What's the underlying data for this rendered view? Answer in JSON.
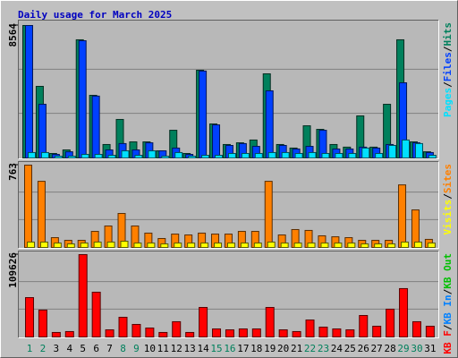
{
  "title": "Daily usage for March 2025",
  "chart_data": [
    {
      "type": "bar",
      "ylim": [
        0,
        8564
      ],
      "yticks": [
        8564
      ],
      "series": [
        {
          "name": "Hits",
          "color": "#00805c",
          "values": [
            8564,
            4630,
            290,
            520,
            7640,
            4050,
            870,
            2490,
            1040,
            1040,
            460,
            1790,
            290,
            5670,
            2200,
            870,
            980,
            1160,
            5440,
            870,
            640,
            2080,
            1850,
            870,
            700,
            2720,
            700,
            3470,
            7640,
            1040,
            400
          ]
        },
        {
          "name": "Files",
          "color": "#0040ff",
          "values": [
            8564,
            3470,
            230,
            400,
            7580,
            4000,
            520,
            930,
            520,
            980,
            460,
            640,
            230,
            5620,
            2140,
            810,
            930,
            750,
            4340,
            810,
            580,
            750,
            1790,
            580,
            580,
            700,
            640,
            870,
            4860,
            980,
            350
          ]
        },
        {
          "name": "Pages",
          "color": "#00e0ff",
          "values": [
            350,
            350,
            115,
            115,
            230,
            230,
            170,
            460,
            170,
            460,
            115,
            350,
            115,
            170,
            170,
            290,
            290,
            290,
            350,
            350,
            290,
            350,
            290,
            290,
            290,
            640,
            290,
            810,
            1160,
            930,
            170
          ]
        }
      ]
    },
    {
      "type": "bar",
      "ylim": [
        0,
        763
      ],
      "yticks": [
        763
      ],
      "series": [
        {
          "name": "Sites",
          "color": "#ff8000",
          "values": [
            763,
            613,
            91,
            66,
            66,
            149,
            199,
            315,
            199,
            133,
            83,
            124,
            116,
            133,
            124,
            124,
            149,
            149,
            613,
            116,
            166,
            158,
            108,
            99,
            91,
            66,
            66,
            66,
            580,
            348,
            75
          ]
        },
        {
          "name": "Visits",
          "color": "#ffff00",
          "values": [
            50,
            50,
            41,
            33,
            41,
            50,
            50,
            58,
            41,
            41,
            33,
            41,
            41,
            41,
            41,
            41,
            41,
            41,
            50,
            41,
            41,
            41,
            41,
            41,
            41,
            33,
            33,
            33,
            50,
            50,
            41
          ]
        }
      ]
    },
    {
      "type": "bar",
      "ylim": [
        0,
        109626
      ],
      "yticks": [
        109626
      ],
      "categories": [
        "1",
        "2",
        "3",
        "4",
        "5",
        "6",
        "7",
        "8",
        "9",
        "10",
        "11",
        "12",
        "13",
        "14",
        "15",
        "16",
        "17",
        "18",
        "19",
        "20",
        "21",
        "22",
        "23",
        "24",
        "25",
        "26",
        "27",
        "28",
        "29",
        "30",
        "31"
      ],
      "category_colors": [
        "#00805c",
        "#00805c",
        "#000000",
        "#000000",
        "#000000",
        "#000000",
        "#000000",
        "#00805c",
        "#00805c",
        "#000000",
        "#000000",
        "#000000",
        "#000000",
        "#000000",
        "#00805c",
        "#00805c",
        "#000000",
        "#000000",
        "#000000",
        "#000000",
        "#000000",
        "#00805c",
        "#00805c",
        "#000000",
        "#000000",
        "#000000",
        "#000000",
        "#000000",
        "#00805c",
        "#00805c",
        "#000000"
      ],
      "series": [
        {
          "name": "KB F",
          "color": "#ff0000",
          "values": [
            52400,
            35800,
            6000,
            7200,
            109626,
            59600,
            9500,
            26200,
            16700,
            11900,
            6000,
            20300,
            6000,
            39300,
            10700,
            9500,
            10700,
            10700,
            39300,
            9500,
            7200,
            22600,
            13100,
            10700,
            9500,
            28600,
            14300,
            37000,
            64400,
            20300,
            14300
          ]
        }
      ],
      "extra_legend": [
        {
          "name": "KB In",
          "color": "#0080ff"
        },
        {
          "name": "KB Out",
          "color": "#00c000"
        }
      ]
    }
  ]
}
